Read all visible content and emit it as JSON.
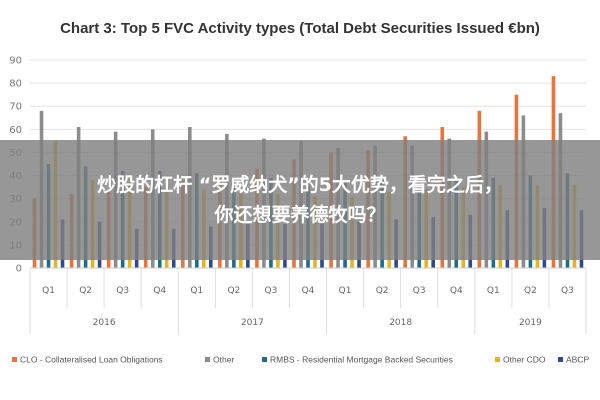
{
  "chart_data": {
    "type": "bar",
    "title": "Chart 3: Top 5 FVC Activity types (Total Debt Securities Issued €bn)",
    "ylim": [
      0,
      90
    ],
    "yticks": [
      0,
      10,
      20,
      30,
      40,
      50,
      60,
      70,
      80,
      90
    ],
    "grid": true,
    "legend_position": "bottom",
    "categories": [
      "Q1",
      "Q2",
      "Q3",
      "Q4",
      "Q1",
      "Q2",
      "Q3",
      "Q4",
      "Q1",
      "Q2",
      "Q3",
      "Q4",
      "Q1",
      "Q2",
      "Q3"
    ],
    "year_groups": [
      {
        "label": "2016",
        "span": 4
      },
      {
        "label": "2017",
        "span": 4
      },
      {
        "label": "2018",
        "span": 4
      },
      {
        "label": "2019",
        "span": 3
      }
    ],
    "series": [
      {
        "name": "CLO - Collateralised Loan Obligations",
        "color": "#e8743b",
        "values": [
          30,
          32,
          33,
          35,
          38,
          40,
          43,
          47,
          50,
          51,
          57,
          61,
          68,
          75,
          83
        ]
      },
      {
        "name": "Other",
        "color": "#8c8c8c",
        "values": [
          68,
          61,
          59,
          60,
          61,
          58,
          56,
          55,
          52,
          53,
          53,
          56,
          59,
          66,
          67
        ]
      },
      {
        "name": "RMBS - Residential Mortgage Backed Securities",
        "color": "#1f6b8a",
        "values": [
          45,
          44,
          42,
          42,
          41,
          38,
          39,
          38,
          37,
          38,
          37,
          38,
          39,
          40,
          41
        ]
      },
      {
        "name": "Other CDO",
        "color": "#e6b325",
        "values": [
          55,
          38,
          37,
          36,
          34,
          33,
          32,
          31,
          31,
          33,
          34,
          35,
          36,
          36,
          36
        ]
      },
      {
        "name": "ABCP",
        "color": "#2e4a8c",
        "values": [
          21,
          20,
          17,
          17,
          18,
          19,
          19,
          19,
          20,
          21,
          22,
          23,
          25,
          26,
          25
        ]
      }
    ]
  },
  "overlay": {
    "line1": "炒股的杠杆 “罗威纳犬”的5大优势，看完之后，",
    "line2": "你还想要养德牧吗？"
  }
}
